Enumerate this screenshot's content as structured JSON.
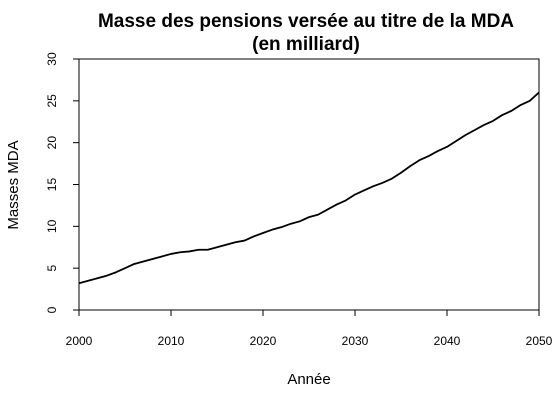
{
  "chart_data": {
    "type": "line",
    "title": [
      "Masse des pensions versée au titre de la MDA",
      "(en milliard)"
    ],
    "xlabel": "Année",
    "ylabel": "Masses MDA",
    "xlim": [
      2000,
      2050
    ],
    "ylim": [
      0,
      30
    ],
    "xticks": [
      "2000",
      "2010",
      "2020",
      "2030",
      "2040",
      "2050"
    ],
    "yticks": [
      "0",
      "5",
      "10",
      "15",
      "20",
      "25",
      "30"
    ],
    "grid": false,
    "line_color": "#000000",
    "series": [
      {
        "x": [
          2000,
          2001,
          2002,
          2003,
          2004,
          2005,
          2006,
          2007,
          2008,
          2009,
          2010,
          2011,
          2012,
          2013,
          2014,
          2015,
          2016,
          2017,
          2018,
          2019,
          2020,
          2021,
          2022,
          2023,
          2024,
          2025,
          2026,
          2027,
          2028,
          2029,
          2030,
          2031,
          2032,
          2033,
          2034,
          2035,
          2036,
          2037,
          2038,
          2039,
          2040,
          2041,
          2042,
          2043,
          2044,
          2045,
          2046,
          2047,
          2048,
          2049,
          2050
        ],
        "values": [
          3.2,
          3.5,
          3.8,
          4.1,
          4.5,
          5.0,
          5.5,
          5.8,
          6.1,
          6.4,
          6.7,
          6.9,
          7.0,
          7.2,
          7.2,
          7.5,
          7.8,
          8.1,
          8.3,
          8.8,
          9.2,
          9.6,
          9.9,
          10.3,
          10.6,
          11.1,
          11.4,
          12.0,
          12.6,
          13.1,
          13.8,
          14.3,
          14.8,
          15.2,
          15.7,
          16.4,
          17.2,
          17.9,
          18.4,
          19.0,
          19.5,
          20.2,
          20.9,
          21.5,
          22.1,
          22.6,
          23.3,
          23.8,
          24.5,
          25.0,
          26.0
        ]
      }
    ]
  }
}
